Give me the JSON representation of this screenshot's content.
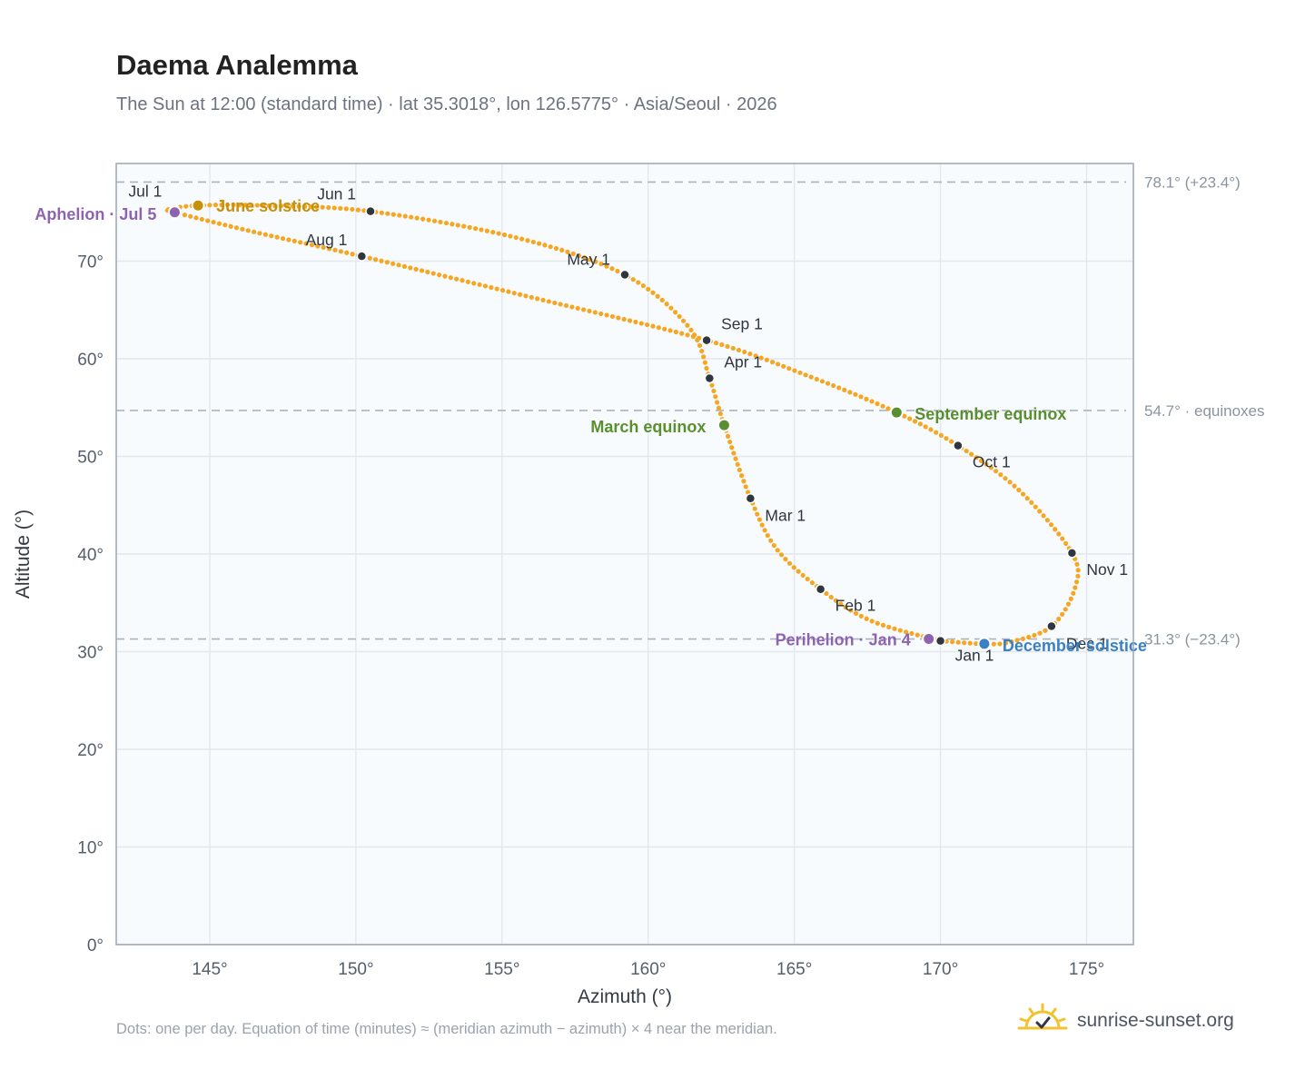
{
  "header": {
    "title": "Daema Analemma",
    "subtitle": "The Sun at 12:00 (standard time) · lat 35.3018°, lon 126.5775° · Asia/Seoul · 2026"
  },
  "footer": {
    "note": "Dots: one per day. Equation of time (minutes) ≈ (meridian azimuth − azimuth) × 4 near the meridian.",
    "brand": "sunrise-sunset.org"
  },
  "colors": {
    "curve": "#f5a623",
    "month_point": "#2f3640",
    "june_solstice": "#c8900a",
    "december_solstice": "#3b7fc4",
    "equinox": "#5a8f2f",
    "apsides": "#8e63b0",
    "reference_line": "#aab4c0",
    "plot_background": "#f8fbfd"
  },
  "chart_data": {
    "type": "scatter",
    "xlabel": "Azimuth (°)",
    "ylabel": "Altitude (°)",
    "xlim": [
      141.8,
      176.6
    ],
    "ylim": [
      0,
      80
    ],
    "xticks": [
      145,
      150,
      155,
      160,
      165,
      170,
      175
    ],
    "xtick_labels": [
      "145°",
      "150°",
      "155°",
      "160°",
      "165°",
      "170°",
      "175°"
    ],
    "yticks": [
      0,
      10,
      20,
      30,
      40,
      50,
      60,
      70
    ],
    "ytick_labels": [
      "0°",
      "10°",
      "20°",
      "30°",
      "40°",
      "50°",
      "60°",
      "70°"
    ],
    "grid": true,
    "reference_lines": [
      {
        "altitude": 78.1,
        "label": "78.1° (+23.4°)"
      },
      {
        "altitude": 54.7,
        "label": "54.7° · equinoxes"
      },
      {
        "altitude": 31.3,
        "label": "31.3° (−23.4°)"
      }
    ],
    "month_points": [
      {
        "label": "Jan 1",
        "azimuth": 170.0,
        "altitude": 31.1
      },
      {
        "label": "Feb 1",
        "azimuth": 165.9,
        "altitude": 36.4
      },
      {
        "label": "Mar 1",
        "azimuth": 163.5,
        "altitude": 45.7
      },
      {
        "label": "Apr 1",
        "azimuth": 162.1,
        "altitude": 58.0
      },
      {
        "label": "May 1",
        "azimuth": 159.2,
        "altitude": 68.6
      },
      {
        "label": "Jun 1",
        "azimuth": 150.5,
        "altitude": 75.1
      },
      {
        "label": "Jul 1",
        "azimuth": 143.8,
        "altitude": 75.3
      },
      {
        "label": "Aug 1",
        "azimuth": 150.2,
        "altitude": 70.5
      },
      {
        "label": "Sep 1",
        "azimuth": 162.0,
        "altitude": 61.9
      },
      {
        "label": "Oct 1",
        "azimuth": 170.6,
        "altitude": 51.1
      },
      {
        "label": "Nov 1",
        "azimuth": 174.5,
        "altitude": 40.1
      },
      {
        "label": "Dec 1",
        "azimuth": 173.8,
        "altitude": 32.6
      }
    ],
    "events": [
      {
        "label": "June solstice",
        "azimuth": 144.6,
        "altitude": 75.7,
        "color_key": "june_solstice"
      },
      {
        "label": "Aphelion · Jul 5",
        "azimuth": 143.8,
        "altitude": 75.0,
        "color_key": "apsides"
      },
      {
        "label": "March equinox",
        "azimuth": 162.6,
        "altitude": 53.2,
        "color_key": "equinox"
      },
      {
        "label": "September equinox",
        "azimuth": 168.5,
        "altitude": 54.5,
        "color_key": "equinox"
      },
      {
        "label": "Perihelion · Jan 4",
        "azimuth": 169.6,
        "altitude": 31.3,
        "color_key": "apsides"
      },
      {
        "label": "December solstice",
        "azimuth": 171.5,
        "altitude": 30.8,
        "color_key": "december_solstice"
      }
    ],
    "curve_path": [
      {
        "azimuth": 170.0,
        "altitude": 31.1
      },
      {
        "azimuth": 167.6,
        "altitude": 33.2
      },
      {
        "azimuth": 165.9,
        "altitude": 36.4
      },
      {
        "azimuth": 164.4,
        "altitude": 40.5
      },
      {
        "azimuth": 163.5,
        "altitude": 45.7
      },
      {
        "azimuth": 162.6,
        "altitude": 53.2
      },
      {
        "azimuth": 162.1,
        "altitude": 58.0
      },
      {
        "azimuth": 161.4,
        "altitude": 63.2
      },
      {
        "azimuth": 159.2,
        "altitude": 68.6
      },
      {
        "azimuth": 155.5,
        "altitude": 72.4
      },
      {
        "azimuth": 150.5,
        "altitude": 75.1
      },
      {
        "azimuth": 146.8,
        "altitude": 75.7
      },
      {
        "azimuth": 144.6,
        "altitude": 75.7
      },
      {
        "azimuth": 143.6,
        "altitude": 75.3
      },
      {
        "azimuth": 143.8,
        "altitude": 75.0
      },
      {
        "azimuth": 146.5,
        "altitude": 73.0
      },
      {
        "azimuth": 150.2,
        "altitude": 70.5
      },
      {
        "azimuth": 156.0,
        "altitude": 66.3
      },
      {
        "azimuth": 162.0,
        "altitude": 61.9
      },
      {
        "azimuth": 165.6,
        "altitude": 58.1
      },
      {
        "azimuth": 168.5,
        "altitude": 54.5
      },
      {
        "azimuth": 170.6,
        "altitude": 51.1
      },
      {
        "azimuth": 172.7,
        "altitude": 46.5
      },
      {
        "azimuth": 174.5,
        "altitude": 40.1
      },
      {
        "azimuth": 174.6,
        "altitude": 36.5
      },
      {
        "azimuth": 173.8,
        "altitude": 32.6
      },
      {
        "azimuth": 172.4,
        "altitude": 31.0
      },
      {
        "azimuth": 171.5,
        "altitude": 30.8
      },
      {
        "azimuth": 170.0,
        "altitude": 31.1
      }
    ]
  }
}
